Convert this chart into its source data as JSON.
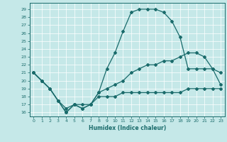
{
  "xlabel": "Humidex (Indice chaleur)",
  "xlim": [
    -0.5,
    23.5
  ],
  "ylim": [
    15.5,
    29.8
  ],
  "yticks": [
    16,
    17,
    18,
    19,
    20,
    21,
    22,
    23,
    24,
    25,
    26,
    27,
    28,
    29
  ],
  "xticks": [
    0,
    1,
    2,
    3,
    4,
    5,
    6,
    7,
    8,
    9,
    10,
    11,
    12,
    13,
    14,
    15,
    16,
    17,
    18,
    19,
    20,
    21,
    22,
    23
  ],
  "bg_color": "#c5e8e8",
  "line_color": "#1a6b6b",
  "line1_x": [
    0,
    1,
    2,
    3,
    4,
    5,
    6,
    7,
    8,
    9,
    10,
    11,
    12,
    13,
    14,
    15,
    16,
    17,
    18,
    19,
    20,
    21,
    22,
    23
  ],
  "line1_y": [
    21,
    20,
    19,
    17.5,
    16,
    17,
    16.5,
    17,
    18.5,
    21.5,
    23.5,
    26.2,
    28.6,
    29.0,
    29.0,
    29.0,
    28.6,
    27.5,
    25.5,
    21.5,
    21.5,
    21.5,
    21.5,
    21.0
  ],
  "line2_x": [
    0,
    1,
    2,
    3,
    4,
    5,
    6,
    7,
    8,
    9,
    10,
    11,
    12,
    13,
    14,
    15,
    16,
    17,
    18,
    19,
    20,
    21,
    22,
    23
  ],
  "line2_y": [
    21,
    20,
    19,
    17.5,
    16.5,
    17,
    17,
    17,
    18.5,
    19,
    19.5,
    20,
    21,
    21.5,
    22,
    22,
    22.5,
    22.5,
    23,
    23.5,
    23.5,
    23,
    21.5,
    19.5
  ],
  "line3_x": [
    0,
    1,
    2,
    3,
    4,
    5,
    6,
    7,
    8,
    9,
    10,
    11,
    12,
    13,
    14,
    15,
    16,
    17,
    18,
    19,
    20,
    21,
    22,
    23
  ],
  "line3_y": [
    21,
    20,
    19,
    17.5,
    16,
    17,
    16.5,
    17,
    18,
    18,
    18,
    18.5,
    18.5,
    18.5,
    18.5,
    18.5,
    18.5,
    18.5,
    18.5,
    19,
    19,
    19,
    19,
    19
  ]
}
